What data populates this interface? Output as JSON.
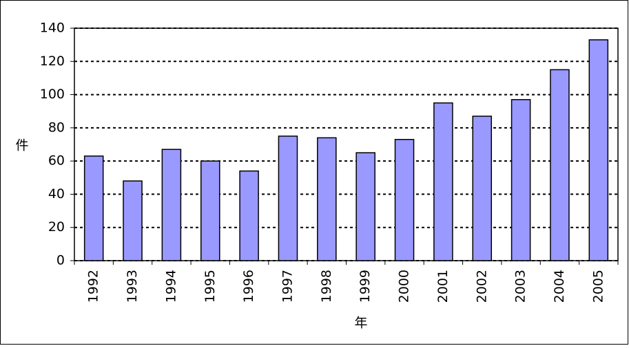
{
  "chart_data": {
    "type": "bar",
    "categories": [
      "1992",
      "1993",
      "1994",
      "1995",
      "1996",
      "1997",
      "1998",
      "1999",
      "2000",
      "2001",
      "2002",
      "2003",
      "2004",
      "2005"
    ],
    "values": [
      63,
      48,
      67,
      60,
      54,
      75,
      74,
      65,
      73,
      95,
      87,
      97,
      115,
      133
    ],
    "color": "#9999ff",
    "x_label": "年",
    "y_label": "件",
    "ylim": [
      0,
      140
    ],
    "yticks": [
      0,
      20,
      40,
      60,
      80,
      100,
      120,
      140
    ],
    "grid": true
  }
}
